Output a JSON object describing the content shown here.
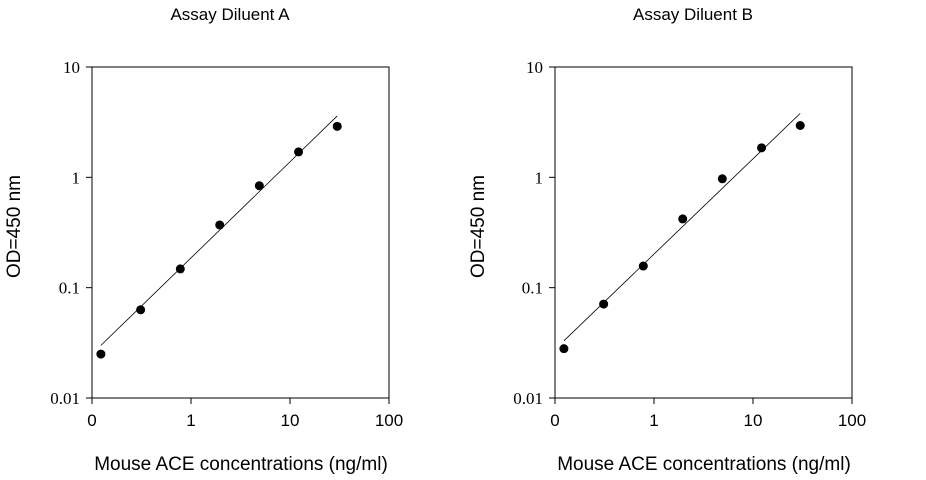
{
  "chart_data": [
    {
      "type": "scatter",
      "title": "Assay Diluent A",
      "xlabel": "Mouse ACE concentrations (ng/ml)",
      "ylabel": "OD=450 nm",
      "xscale": "log",
      "yscale": "log",
      "xlim": [
        0.1,
        100
      ],
      "ylim": [
        0.01,
        10
      ],
      "xticks": [
        "0",
        "1",
        "10",
        "100"
      ],
      "yticks": [
        "0.01",
        "0.1",
        "1",
        "10"
      ],
      "grid": false,
      "points": {
        "x": [
          0.123,
          0.31,
          0.78,
          1.95,
          4.9,
          12.2,
          30
        ],
        "y": [
          0.025,
          0.063,
          0.148,
          0.37,
          0.84,
          1.7,
          2.9
        ]
      },
      "fit_line": {
        "x": [
          0.123,
          30
        ],
        "y": [
          0.03,
          3.6
        ]
      }
    },
    {
      "type": "scatter",
      "title": "Assay Diluent B",
      "xlabel": "Mouse ACE concentrations (ng/ml)",
      "ylabel": "OD=450 nm",
      "xscale": "log",
      "yscale": "log",
      "xlim": [
        0.1,
        100
      ],
      "ylim": [
        0.01,
        10
      ],
      "xticks": [
        "0",
        "1",
        "10",
        "100"
      ],
      "yticks": [
        "0.01",
        "0.1",
        "1",
        "10"
      ],
      "grid": false,
      "points": {
        "x": [
          0.123,
          0.31,
          0.78,
          1.95,
          4.9,
          12.2,
          30
        ],
        "y": [
          0.028,
          0.071,
          0.157,
          0.42,
          0.97,
          1.85,
          2.95
        ]
      },
      "fit_line": {
        "x": [
          0.123,
          30
        ],
        "y": [
          0.033,
          3.8
        ]
      }
    }
  ]
}
